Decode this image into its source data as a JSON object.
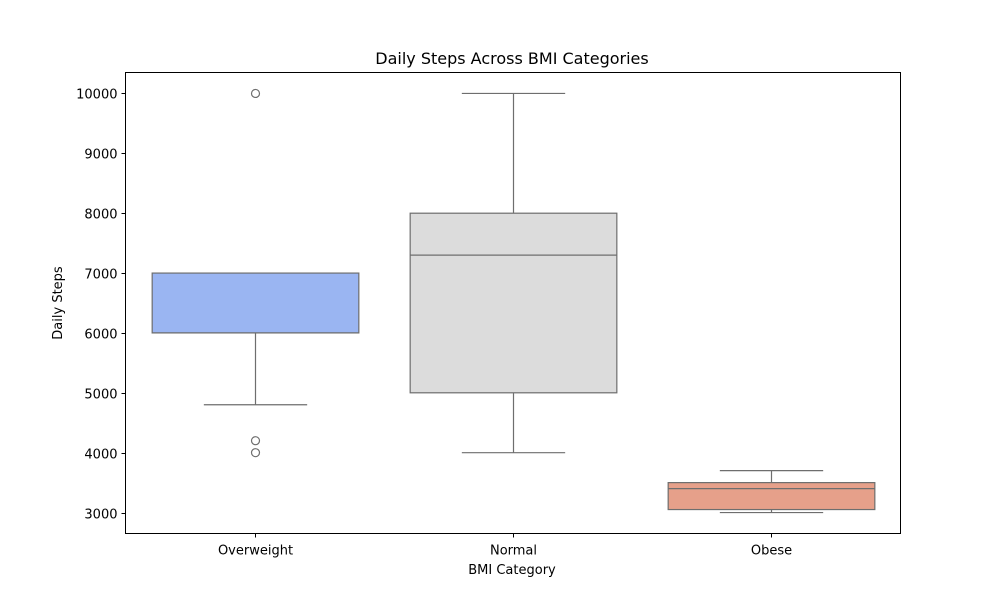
{
  "chart_data": {
    "type": "box",
    "title": "Daily Steps Across BMI Categories",
    "xlabel": "BMI Category",
    "ylabel": "Daily Steps",
    "ylim": [
      2650,
      10350
    ],
    "yticks": [
      3000,
      4000,
      5000,
      6000,
      7000,
      8000,
      9000,
      10000
    ],
    "grid": false,
    "line_color": "#6e6e6e",
    "categories": [
      "Overweight",
      "Normal",
      "Obese"
    ],
    "boxes": [
      {
        "category": "Overweight",
        "color": "#9ab5f2",
        "whisker_low": 4800,
        "q1": 6000,
        "median": 6000,
        "q3": 7000,
        "whisker_high": 7000,
        "outliers": [
          10000,
          4200,
          4000
        ]
      },
      {
        "category": "Normal",
        "color": "#dcdcdc",
        "whisker_low": 4000,
        "q1": 5000,
        "median": 7300,
        "q3": 8000,
        "whisker_high": 10000,
        "outliers": []
      },
      {
        "category": "Obese",
        "color": "#e6a08a",
        "whisker_low": 3000,
        "q1": 3050,
        "median": 3400,
        "q3": 3500,
        "whisker_high": 3700,
        "outliers": []
      }
    ]
  }
}
